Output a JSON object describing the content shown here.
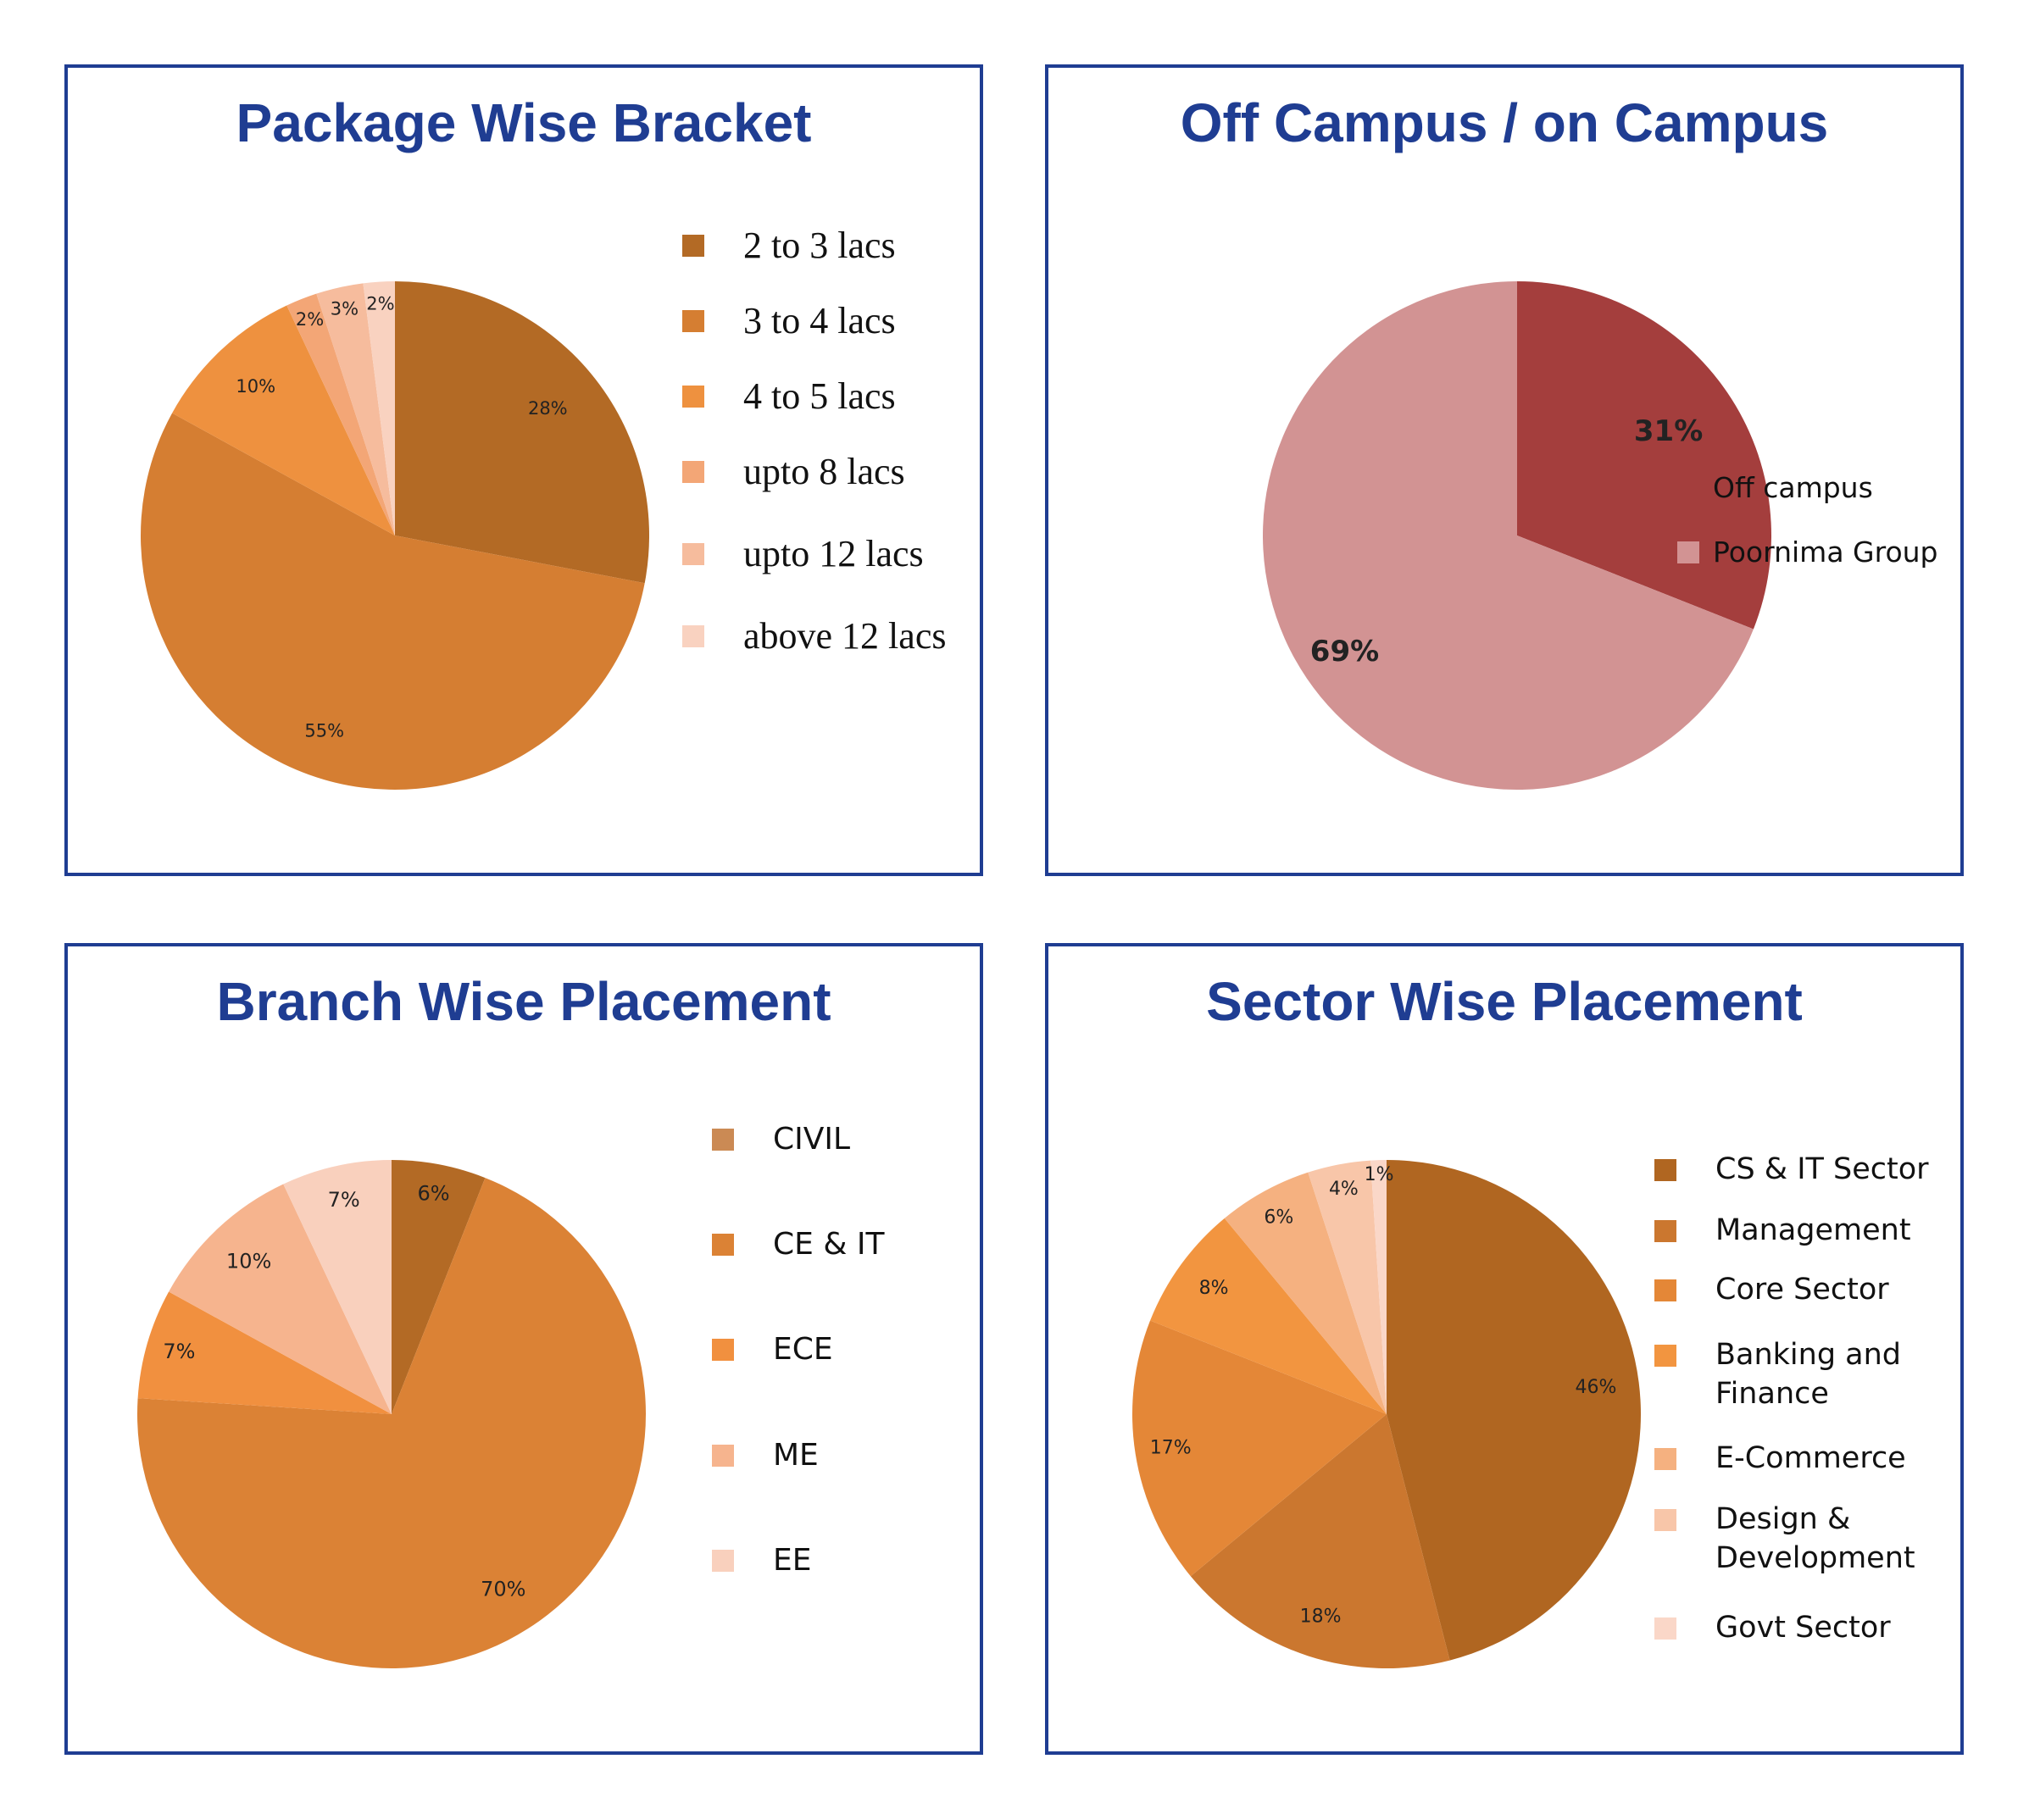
{
  "colors": {
    "frame": "#1f3d92",
    "title": "#1f3d92"
  },
  "chart_data": [
    {
      "type": "pie",
      "title": "Package Wise Bracket",
      "legend_position": "right",
      "categories": [
        "2 to 3 lacs",
        "3 to 4 lacs",
        "4 to 5 lacs",
        "upto 8 lacs",
        "upto 12 lacs",
        "above 12 lacs"
      ],
      "values": [
        28,
        55,
        10,
        2,
        3,
        2
      ],
      "labels": [
        "28%",
        "55%",
        "10%",
        "2%",
        "3%",
        "2%"
      ],
      "colors": [
        "#b36a25",
        "#d57e32",
        "#ee913f",
        "#f3a676",
        "#f6bc9d",
        "#f9d2c0"
      ]
    },
    {
      "type": "pie",
      "title": "Off Campus / on Campus",
      "legend_position": "right",
      "categories": [
        "Off campus",
        "Poornima Group"
      ],
      "values": [
        31,
        69
      ],
      "labels": [
        "31%",
        "69%"
      ],
      "colors": [
        "#a43e3d",
        "#d29393"
      ]
    },
    {
      "type": "pie",
      "title": "Branch Wise Placement",
      "legend_position": "right",
      "categories": [
        "CIVIL",
        "CE & IT",
        "ECE",
        "ME",
        "EE"
      ],
      "values": [
        6,
        70,
        7,
        10,
        7
      ],
      "labels": [
        "6%",
        "70%",
        "7%",
        "10%",
        "7%"
      ],
      "colors": [
        "#b36a25",
        "#db8235",
        "#f1903f",
        "#f6b48e",
        "#f9d0bd"
      ],
      "legend_colors": [
        "#cb8a54",
        "#db8235",
        "#f1903f",
        "#f6b48e",
        "#f9d0bd"
      ]
    },
    {
      "type": "pie",
      "title": "Sector Wise Placement",
      "legend_position": "right",
      "categories": [
        "CS & IT Sector",
        "Management",
        "Core Sector",
        "Banking and Finance",
        "E-Commerce",
        "Design & Development",
        "Govt Sector"
      ],
      "values": [
        46,
        18,
        17,
        8,
        6,
        4,
        1
      ],
      "labels": [
        "46%",
        "18%",
        "17%",
        "8%",
        "6%",
        "4%",
        "1%"
      ],
      "colors": [
        "#b06621",
        "#cb772f",
        "#e48737",
        "#f29540",
        "#f5b180",
        "#f8c6a9",
        "#fad7c8"
      ]
    }
  ]
}
